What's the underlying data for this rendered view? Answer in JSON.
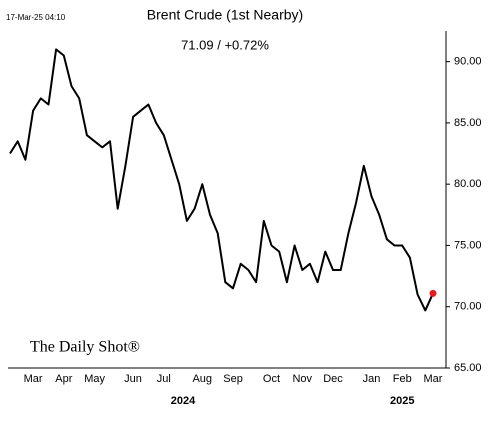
{
  "chart_data": {
    "type": "line",
    "title": "Brent Crude (1st Nearby)",
    "subtitle": "71.09  /  +0.72%",
    "timestamp": "17-Mar-25 04:10",
    "source": "The Daily Shot®",
    "color": "#000000",
    "marker_color": "#e8191e",
    "categories": [
      null,
      null,
      null,
      "Mar",
      null,
      null,
      null,
      "Apr",
      null,
      null,
      null,
      "May",
      null,
      null,
      null,
      null,
      "Jun",
      null,
      null,
      null,
      "Jul",
      null,
      null,
      null,
      null,
      "Aug",
      null,
      null,
      null,
      "Sep",
      null,
      null,
      null,
      null,
      "Oct",
      null,
      null,
      null,
      "Nov",
      null,
      null,
      null,
      "Dec",
      null,
      null,
      null,
      null,
      "Jan",
      null,
      null,
      null,
      "Feb",
      null,
      null,
      null,
      "Mar"
    ],
    "year_labels": [
      "2024",
      "2025"
    ],
    "values": [
      82.5,
      83.5,
      82,
      86,
      87,
      86.5,
      91,
      90.5,
      88,
      87,
      84,
      83.5,
      83,
      83.5,
      78,
      81.5,
      85.5,
      86,
      86.5,
      85,
      84,
      82,
      80,
      77,
      78,
      80,
      77.5,
      76,
      72,
      71.5,
      73.5,
      73,
      72,
      77,
      75,
      74.5,
      72,
      75,
      73,
      73.5,
      72,
      74.5,
      73,
      73,
      76,
      78.5,
      81.5,
      79,
      77.5,
      75.5,
      75,
      75,
      74,
      71,
      69.7,
      71.09
    ],
    "ylim": [
      65,
      92.5
    ],
    "yticks": [
      {
        "value": 65,
        "label": "65.00"
      },
      {
        "value": 70,
        "label": "70.00"
      },
      {
        "value": 75,
        "label": "75.00"
      },
      {
        "value": 80,
        "label": "80.00"
      },
      {
        "value": 85,
        "label": "85.00"
      },
      {
        "value": 90,
        "label": "90.00"
      }
    ],
    "grid": false
  }
}
